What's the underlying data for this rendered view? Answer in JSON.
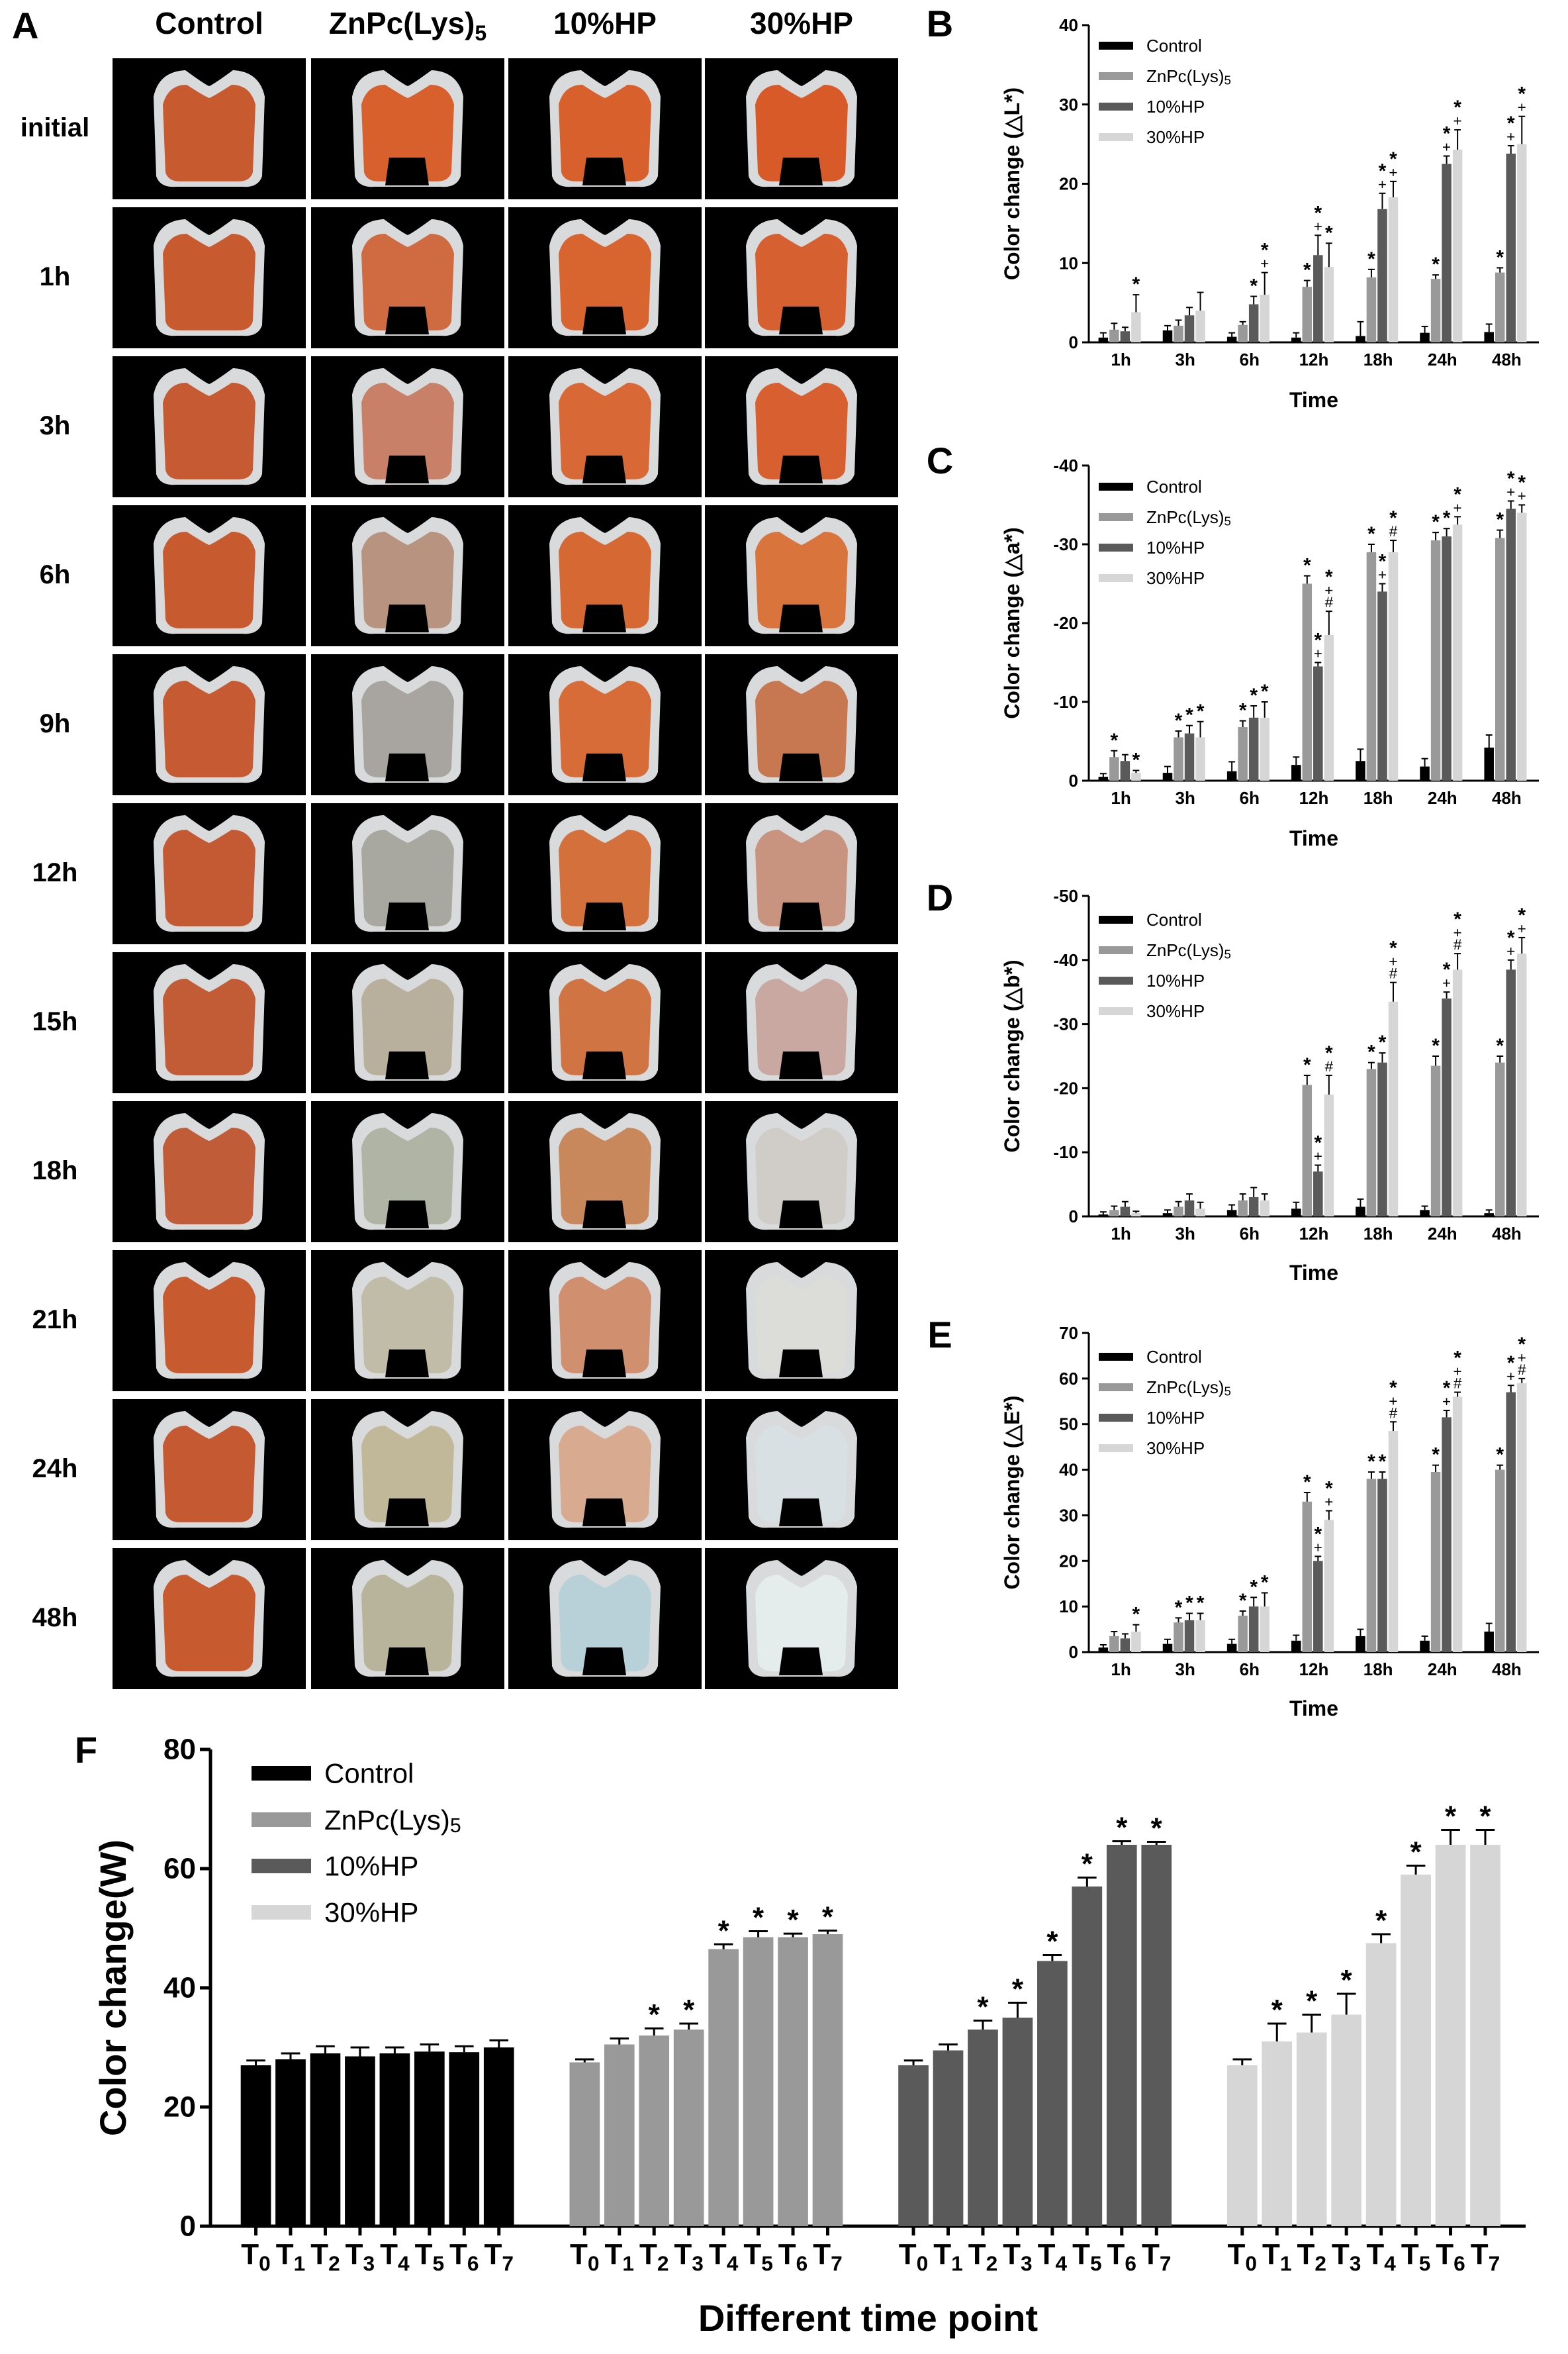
{
  "panel_a": {
    "letter": "A",
    "columns": [
      "Control",
      "ZnPc(Lys)5",
      "10%HP",
      "30%HP"
    ],
    "rows": [
      "initial",
      "1h",
      "3h",
      "6h",
      "9h",
      "12h",
      "15h",
      "18h",
      "21h",
      "24h",
      "48h"
    ],
    "tooth_colors": {
      "Control": [
        "#c85a30",
        "#c85a30",
        "#c65a32",
        "#c85a30",
        "#c65a32",
        "#c35a34",
        "#c25c36",
        "#c05c38",
        "#c85a30",
        "#c55a32",
        "#c85a30"
      ],
      "ZnPc(Lys)5": [
        "#d8602c",
        "#d06a40",
        "#c88068",
        "#b89480",
        "#a8a4a0",
        "#a8a8a0",
        "#b8b09c",
        "#b0b4a4",
        "#c0bca8",
        "#c0b898",
        "#b8b49c"
      ],
      "10%HP": [
        "#d8602c",
        "#d86430",
        "#d86836",
        "#d66834",
        "#d86c38",
        "#d4703c",
        "#d07444",
        "#c8885c",
        "#d09070",
        "#d8aa90",
        "#b8d0d8"
      ],
      "30%HP": [
        "#d85a28",
        "#d66030",
        "#d86030",
        "#d8743c",
        "#c87850",
        "#c89480",
        "#c8a8a0",
        "#d0ccc8",
        "#dcdcd8",
        "#d8e0e4",
        "#e4ecec"
      ]
    }
  },
  "chart_data": [
    {
      "panel": "B",
      "type": "bar",
      "ylabel": "Color change (△L*)",
      "xlabel": "Time",
      "ylim": [
        0,
        40
      ],
      "yticks": [
        "0",
        "10",
        "20",
        "30",
        "40"
      ],
      "categories": [
        "1h",
        "3h",
        "6h",
        "12h",
        "18h",
        "24h",
        "48h"
      ],
      "series": [
        {
          "name": "Control",
          "values": [
            0.6,
            1.5,
            0.7,
            0.6,
            0.8,
            1.2,
            1.3
          ],
          "err": [
            0.6,
            0.6,
            0.5,
            0.6,
            1.8,
            0.8,
            1.0
          ],
          "marks": [
            "",
            "",
            "",
            "",
            "",
            "",
            ""
          ]
        },
        {
          "name": "ZnPc(Lys)5",
          "values": [
            1.6,
            2.1,
            2.2,
            7.0,
            8.2,
            8.0,
            8.8
          ],
          "err": [
            0.8,
            0.7,
            0.4,
            0.8,
            1.0,
            0.5,
            0.6
          ],
          "marks": [
            "",
            "",
            "",
            "*",
            "*",
            "*",
            "*"
          ]
        },
        {
          "name": "10%HP",
          "values": [
            1.4,
            3.4,
            4.8,
            11.0,
            16.8,
            22.5,
            23.8
          ],
          "err": [
            0.5,
            1.0,
            1.0,
            2.5,
            2.0,
            1.0,
            1.0
          ],
          "marks": [
            "",
            "",
            "*",
            "*+",
            "*+",
            "*+",
            "*+"
          ]
        },
        {
          "name": "30%HP",
          "values": [
            3.8,
            4.0,
            6.0,
            9.5,
            18.3,
            24.3,
            25.0
          ],
          "err": [
            2.2,
            2.3,
            2.8,
            3.0,
            2.0,
            2.5,
            3.5
          ],
          "marks": [
            "*",
            "",
            "*+",
            "*",
            "*+",
            "*+",
            "*+"
          ]
        }
      ],
      "legend": "top-left"
    },
    {
      "panel": "C",
      "type": "bar",
      "ylabel": "Color change (△a*)",
      "xlabel": "Time",
      "ylim": [
        0,
        -40
      ],
      "yticks": [
        "0",
        "-10",
        "-20",
        "-30",
        "-40"
      ],
      "categories": [
        "1h",
        "3h",
        "6h",
        "12h",
        "18h",
        "24h",
        "48h"
      ],
      "series": [
        {
          "name": "Control",
          "values": [
            -0.5,
            -1.0,
            -1.2,
            -2.0,
            -2.5,
            -1.8,
            -4.2
          ],
          "err": [
            0.4,
            0.8,
            1.2,
            1.0,
            1.5,
            1.0,
            1.6
          ],
          "marks": [
            "",
            "",
            "",
            "",
            "",
            "",
            ""
          ]
        },
        {
          "name": "ZnPc(Lys)5",
          "values": [
            -3.0,
            -5.5,
            -6.8,
            -25.0,
            -29.0,
            -30.5,
            -30.8
          ],
          "err": [
            0.8,
            0.8,
            0.8,
            1.0,
            1.0,
            1.0,
            1.0
          ],
          "marks": [
            "*",
            "*",
            "*",
            "*",
            "*",
            "*",
            "*"
          ]
        },
        {
          "name": "10%HP",
          "values": [
            -2.5,
            -6.0,
            -8.0,
            -14.5,
            -24.0,
            -31.0,
            -34.5
          ],
          "err": [
            0.8,
            1.0,
            1.5,
            0.5,
            1.0,
            1.0,
            1.0
          ],
          "marks": [
            "",
            "*",
            "*",
            "*+",
            "*+",
            "*",
            "*+"
          ]
        },
        {
          "name": "30%HP",
          "values": [
            -1.0,
            -5.5,
            -8.0,
            -18.5,
            -29.0,
            -32.5,
            -34.0
          ],
          "err": [
            0.3,
            2.0,
            2.0,
            3.0,
            1.5,
            1.0,
            1.0
          ],
          "marks": [
            "*",
            "*",
            "*",
            "*+#",
            "*#",
            "*+",
            "*+"
          ]
        }
      ],
      "legend": "top-left"
    },
    {
      "panel": "D",
      "type": "bar",
      "ylabel": "Color change (△b*)",
      "xlabel": "Time",
      "ylim": [
        0,
        -50
      ],
      "yticks": [
        "0",
        "-10",
        "-20",
        "-30",
        "-40",
        "-50"
      ],
      "categories": [
        "1h",
        "3h",
        "6h",
        "12h",
        "18h",
        "24h",
        "48h"
      ],
      "series": [
        {
          "name": "Control",
          "values": [
            -0.3,
            -0.5,
            -1.0,
            -1.2,
            -1.5,
            -1.0,
            -0.5
          ],
          "err": [
            0.4,
            0.5,
            0.8,
            1.0,
            1.2,
            0.6,
            0.5
          ],
          "marks": [
            "",
            "",
            "",
            "",
            "",
            "",
            ""
          ]
        },
        {
          "name": "ZnPc(Lys)5",
          "values": [
            -1.0,
            -1.5,
            -2.5,
            -20.5,
            -23.0,
            -23.5,
            -24.0
          ],
          "err": [
            0.6,
            0.8,
            1.0,
            1.5,
            1.0,
            1.5,
            1.0
          ],
          "marks": [
            "",
            "",
            "",
            "*",
            "*",
            "*",
            "*"
          ]
        },
        {
          "name": "10%HP",
          "values": [
            -1.5,
            -2.5,
            -3.0,
            -7.0,
            -24.0,
            -34.0,
            -38.5
          ],
          "err": [
            0.8,
            1.0,
            1.5,
            1.0,
            1.5,
            1.0,
            1.5
          ],
          "marks": [
            "",
            "",
            "",
            "*+",
            "*",
            "*+",
            "*+"
          ]
        },
        {
          "name": "30%HP",
          "values": [
            -0.5,
            -1.2,
            -2.5,
            -19.0,
            -33.5,
            -38.5,
            -41.0
          ],
          "err": [
            0.3,
            1.0,
            1.0,
            3.0,
            3.0,
            2.5,
            2.5
          ],
          "marks": [
            "",
            "",
            "",
            "*#",
            "*+#",
            "*+#",
            "*+"
          ]
        }
      ],
      "legend": "top-left"
    },
    {
      "panel": "E",
      "type": "bar",
      "ylabel": "Color change (△E*)",
      "xlabel": "Time",
      "ylim": [
        0,
        70
      ],
      "yticks": [
        "0",
        "10",
        "20",
        "30",
        "40",
        "50",
        "60",
        "70"
      ],
      "categories": [
        "1h",
        "3h",
        "6h",
        "12h",
        "18h",
        "24h",
        "48h"
      ],
      "series": [
        {
          "name": "Control",
          "values": [
            1.0,
            1.8,
            1.8,
            2.5,
            3.5,
            2.5,
            4.5
          ],
          "err": [
            0.6,
            1.0,
            1.0,
            1.2,
            1.5,
            1.0,
            1.8
          ],
          "marks": [
            "",
            "",
            "",
            "",
            "",
            "",
            ""
          ]
        },
        {
          "name": "ZnPc(Lys)5",
          "values": [
            3.5,
            6.5,
            8.0,
            33.0,
            38.0,
            39.5,
            40.0
          ],
          "err": [
            1.0,
            1.0,
            1.0,
            2.0,
            1.5,
            1.5,
            1.0
          ],
          "marks": [
            "",
            "*",
            "*",
            "*",
            "*",
            "*",
            "*"
          ]
        },
        {
          "name": "10%HP",
          "values": [
            3.0,
            7.0,
            10.0,
            20.0,
            38.0,
            51.5,
            57.0
          ],
          "err": [
            1.0,
            1.5,
            2.0,
            1.0,
            1.5,
            1.5,
            1.5
          ],
          "marks": [
            "",
            "*",
            "*",
            "*+",
            "*",
            "*+",
            "*+"
          ]
        },
        {
          "name": "30%HP",
          "values": [
            4.5,
            7.0,
            10.0,
            29.0,
            48.5,
            56.0,
            59.0
          ],
          "err": [
            1.5,
            1.5,
            3.0,
            2.0,
            2.0,
            1.0,
            1.0
          ],
          "marks": [
            "*",
            "*",
            "*",
            "*+",
            "*+#",
            "*+#",
            "*+#"
          ]
        }
      ],
      "legend": "top-left"
    },
    {
      "panel": "F",
      "type": "bar",
      "ylabel": "Color change(W)",
      "xlabel": "Different time point",
      "ylim": [
        0,
        80
      ],
      "yticks": [
        "0",
        "20",
        "40",
        "60",
        "80"
      ],
      "categories": [
        "T0",
        "T1",
        "T2",
        "T3",
        "T4",
        "T5",
        "T6",
        "T7"
      ],
      "series": [
        {
          "name": "Control",
          "values": [
            27.0,
            28.0,
            29.0,
            28.5,
            29.0,
            29.3,
            29.2,
            30.0
          ],
          "err": [
            0.8,
            1.0,
            1.2,
            1.5,
            1.0,
            1.2,
            1.0,
            1.2
          ],
          "marks": [
            "",
            "",
            "",
            "",
            "",
            "",
            "",
            ""
          ]
        },
        {
          "name": "ZnPc(Lys)5",
          "values": [
            27.5,
            30.5,
            32.0,
            33.0,
            46.5,
            48.5,
            48.5,
            49.0
          ],
          "err": [
            0.5,
            1.0,
            1.2,
            1.0,
            0.8,
            1.0,
            0.6,
            0.6
          ],
          "marks": [
            "",
            "",
            "*",
            "*",
            "*",
            "*",
            "*",
            "*"
          ]
        },
        {
          "name": "10%HP",
          "values": [
            27.0,
            29.5,
            33.0,
            35.0,
            44.5,
            57.0,
            64.0,
            64.0
          ],
          "err": [
            0.8,
            1.0,
            1.5,
            2.5,
            1.0,
            1.5,
            0.6,
            0.5
          ],
          "marks": [
            "",
            "",
            "*",
            "*",
            "*",
            "*",
            "*",
            "*"
          ]
        },
        {
          "name": "30%HP",
          "values": [
            27.0,
            31.0,
            32.5,
            35.5,
            47.5,
            59.0,
            64.0,
            64.0
          ],
          "err": [
            1.0,
            3.0,
            3.0,
            3.5,
            1.5,
            1.5,
            2.5,
            2.5
          ],
          "marks": [
            "",
            "*",
            "*",
            "*",
            "*",
            "*",
            "*",
            "*"
          ]
        }
      ],
      "legend": "top-left"
    }
  ],
  "colors": {
    "Control": "#000000",
    "ZnPc(Lys)5": "#999999",
    "10%HP": "#5a5a5a",
    "30%HP": "#d6d6d6"
  }
}
